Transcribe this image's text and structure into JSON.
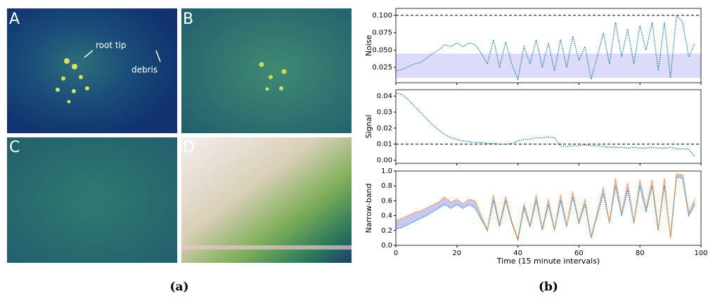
{
  "panels": [
    {
      "label": "A",
      "annotations": [
        "root tip",
        "debris"
      ]
    },
    {
      "label": "B"
    },
    {
      "label": "C"
    },
    {
      "label": "D"
    }
  ],
  "captions": [
    "(a)",
    "(b)"
  ],
  "chart_data": [
    {
      "type": "line",
      "ylabel": "Noise",
      "x": [
        0,
        2,
        4,
        6,
        8,
        10,
        12,
        14,
        16,
        18,
        20,
        22,
        24,
        26,
        28,
        30,
        32,
        34,
        36,
        38,
        40,
        42,
        44,
        46,
        48,
        50,
        52,
        54,
        56,
        58,
        60,
        62,
        64,
        66,
        68,
        70,
        72,
        74,
        76,
        78,
        80,
        82,
        84,
        86,
        88,
        90,
        92,
        94,
        96,
        98
      ],
      "values": [
        0.02,
        0.022,
        0.026,
        0.03,
        0.032,
        0.038,
        0.045,
        0.05,
        0.058,
        0.055,
        0.06,
        0.055,
        0.06,
        0.058,
        0.045,
        0.03,
        0.065,
        0.025,
        0.062,
        0.03,
        0.008,
        0.055,
        0.03,
        0.065,
        0.025,
        0.06,
        0.02,
        0.065,
        0.025,
        0.07,
        0.035,
        0.055,
        0.008,
        0.04,
        0.075,
        0.03,
        0.09,
        0.04,
        0.08,
        0.03,
        0.085,
        0.05,
        0.09,
        0.02,
        0.09,
        0.01,
        0.1,
        0.09,
        0.04,
        0.06
      ],
      "color": "#1f77b4",
      "band": [
        0.01,
        0.045
      ],
      "band_color": "#dcdcfa",
      "hlines": [
        0.1
      ],
      "xlim": [
        0,
        100
      ],
      "xticks": [
        0,
        20,
        40,
        60,
        80,
        100
      ],
      "xtick_labels": false,
      "ylim": [
        0.003,
        0.11
      ],
      "yticks": [
        {
          "value": 0.025,
          "label": "0.025"
        },
        {
          "value": 0.05,
          "label": "0.050"
        },
        {
          "value": 0.075,
          "label": "0.075"
        },
        {
          "value": 0.1,
          "label": "0.100"
        }
      ]
    },
    {
      "type": "line",
      "ylabel": "Signal",
      "x": [
        0,
        2,
        4,
        6,
        8,
        10,
        12,
        14,
        16,
        18,
        20,
        22,
        24,
        26,
        28,
        30,
        32,
        34,
        36,
        38,
        40,
        42,
        44,
        46,
        48,
        50,
        52,
        54,
        56,
        58,
        60,
        62,
        64,
        66,
        68,
        70,
        72,
        74,
        76,
        78,
        80,
        82,
        84,
        86,
        88,
        90,
        92,
        94,
        96,
        98
      ],
      "values": [
        0.042,
        0.041,
        0.038,
        0.034,
        0.03,
        0.026,
        0.022,
        0.019,
        0.016,
        0.014,
        0.013,
        0.012,
        0.0115,
        0.011,
        0.011,
        0.0105,
        0.0105,
        0.01,
        0.01,
        0.0105,
        0.012,
        0.013,
        0.013,
        0.014,
        0.014,
        0.0145,
        0.014,
        0.009,
        0.0085,
        0.009,
        0.009,
        0.0095,
        0.009,
        0.009,
        0.0085,
        0.008,
        0.008,
        0.008,
        0.0075,
        0.008,
        0.0075,
        0.0075,
        0.008,
        0.0075,
        0.0075,
        0.008,
        0.007,
        0.007,
        0.007,
        0.002
      ],
      "color": "#1f77b4",
      "hlines": [
        0.01
      ],
      "xlim": [
        0,
        100
      ],
      "xticks": [
        0,
        20,
        40,
        60,
        80,
        100
      ],
      "xtick_labels": false,
      "ylim": [
        -0.002,
        0.044
      ],
      "yticks": [
        {
          "value": 0,
          "label": "0.00"
        },
        {
          "value": 0.01,
          "label": "0.01"
        },
        {
          "value": 0.02,
          "label": "0.02"
        },
        {
          "value": 0.03,
          "label": "0.03"
        },
        {
          "value": 0.04,
          "label": "0.04"
        }
      ]
    },
    {
      "type": "line",
      "ylabel": "Narrow-band",
      "xlabel": "Time (15 minute intervals)",
      "x": [
        0,
        2,
        4,
        6,
        8,
        10,
        12,
        14,
        16,
        18,
        20,
        22,
        24,
        26,
        28,
        30,
        32,
        34,
        36,
        38,
        40,
        42,
        44,
        46,
        48,
        50,
        52,
        54,
        56,
        58,
        60,
        62,
        64,
        66,
        68,
        70,
        72,
        74,
        76,
        78,
        80,
        82,
        84,
        86,
        88,
        90,
        92,
        94,
        96,
        98
      ],
      "series": [
        {
          "color": "#1f77b4",
          "values": [
            0.22,
            0.24,
            0.28,
            0.32,
            0.36,
            0.4,
            0.45,
            0.5,
            0.55,
            0.5,
            0.55,
            0.5,
            0.55,
            0.5,
            0.35,
            0.2,
            0.6,
            0.25,
            0.6,
            0.3,
            0.08,
            0.5,
            0.25,
            0.6,
            0.2,
            0.55,
            0.2,
            0.6,
            0.25,
            0.65,
            0.3,
            0.55,
            0.1,
            0.4,
            0.7,
            0.3,
            0.8,
            0.4,
            0.75,
            0.3,
            0.8,
            0.45,
            0.8,
            0.2,
            0.8,
            0.1,
            0.92,
            0.9,
            0.4,
            0.55
          ]
        },
        {
          "color": "#ff7f0e",
          "values": [
            0.34,
            0.36,
            0.4,
            0.44,
            0.46,
            0.5,
            0.54,
            0.58,
            0.65,
            0.58,
            0.62,
            0.56,
            0.62,
            0.6,
            0.4,
            0.22,
            0.68,
            0.28,
            0.66,
            0.32,
            0.08,
            0.56,
            0.27,
            0.68,
            0.22,
            0.62,
            0.22,
            0.68,
            0.27,
            0.72,
            0.32,
            0.62,
            0.11,
            0.44,
            0.78,
            0.32,
            0.9,
            0.44,
            0.84,
            0.32,
            0.88,
            0.5,
            0.88,
            0.22,
            0.9,
            0.11,
            0.96,
            0.95,
            0.44,
            0.62
          ]
        }
      ],
      "fill_between": "#c8c8f5",
      "xlim": [
        0,
        100
      ],
      "xticks": [
        0,
        20,
        40,
        60,
        80,
        100
      ],
      "xtick_labels": true,
      "ylim": [
        0,
        1
      ],
      "yticks": [
        {
          "value": 0,
          "label": "0.0"
        },
        {
          "value": 0.2,
          "label": "0.2"
        },
        {
          "value": 0.4,
          "label": "0.4"
        },
        {
          "value": 0.6,
          "label": "0.6"
        },
        {
          "value": 0.8,
          "label": "0.8"
        },
        {
          "value": 1,
          "label": "1.0"
        }
      ]
    }
  ]
}
